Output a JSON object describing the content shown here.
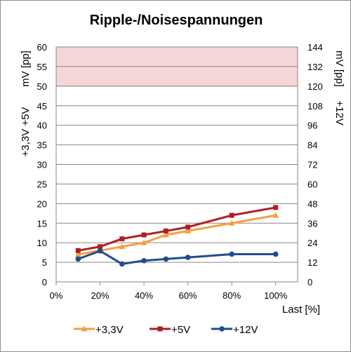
{
  "chart_data": {
    "type": "line",
    "title": "Ripple-/Noisespannungen",
    "xlabel": "Last [%]",
    "ylabel_left_top": "mV [pp]",
    "ylabel_left_bottom": "+3,3V +5V",
    "ylabel_right_top": "mV [pp]",
    "ylabel_right_bottom": "+12V",
    "x_ticks": [
      "0%",
      "20%",
      "40%",
      "60%",
      "80%",
      "100%"
    ],
    "xlim": [
      0,
      110
    ],
    "y_left_ticks": [
      "0",
      "5",
      "10",
      "15",
      "20",
      "25",
      "30",
      "35",
      "40",
      "45",
      "50",
      "55",
      "60"
    ],
    "ylim_left": [
      0,
      60
    ],
    "y_right_ticks": [
      "0",
      "12",
      "24",
      "36",
      "48",
      "60",
      "72",
      "84",
      "96",
      "108",
      "120",
      "132",
      "144"
    ],
    "ylim_right": [
      0,
      144
    ],
    "limit_band_left": [
      50,
      60
    ],
    "grid": true,
    "legend_position": "bottom",
    "series": [
      {
        "name": "+3,3V",
        "axis": "left",
        "color": "#f4a040",
        "marker": "triangle",
        "x": [
          10,
          20,
          30,
          40,
          50,
          60,
          80,
          100
        ],
        "values": [
          7,
          8,
          9,
          10,
          12,
          13,
          15,
          17
        ]
      },
      {
        "name": "+5V",
        "axis": "left",
        "color": "#b01e23",
        "marker": "square",
        "x": [
          10,
          20,
          30,
          40,
          50,
          60,
          80,
          100
        ],
        "values": [
          8,
          9,
          11,
          12,
          13,
          14,
          17,
          19
        ]
      },
      {
        "name": "+12V",
        "axis": "right",
        "color": "#1f4e8c",
        "marker": "circle",
        "x": [
          10,
          20,
          30,
          40,
          50,
          60,
          80,
          100
        ],
        "values": [
          14,
          19,
          11,
          13,
          14,
          15,
          17,
          17
        ]
      }
    ],
    "colors": {
      "grid": "#868686",
      "band_fill": "#f5d6d6",
      "band_border": "#dca4a4"
    }
  }
}
